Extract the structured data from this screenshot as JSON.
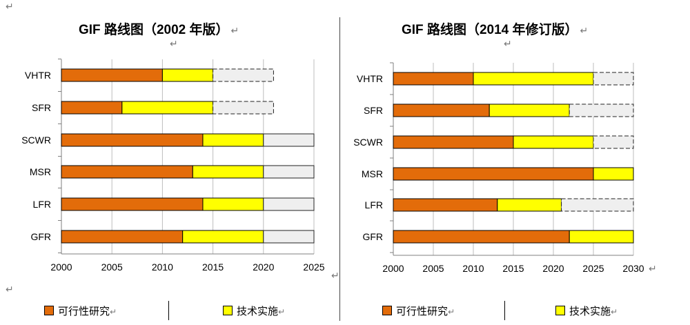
{
  "colors": {
    "feasibility": "#e36c0a",
    "implementation": "#ffff00",
    "remaining": "#efefef"
  },
  "legend": {
    "feasibility": "可行性研究",
    "implementation": "技术实施"
  },
  "marks": {
    "return_glyph": "↵"
  },
  "chart_data": [
    {
      "type": "bar",
      "orientation": "horizontal-stacked-gantt",
      "title": "GIF 路线图（2002 年版）",
      "categories": [
        "VHTR",
        "SFR",
        "SCWR",
        "MSR",
        "LFR",
        "GFR"
      ],
      "xlim": [
        2000,
        2025
      ],
      "xticks": [
        2000,
        2005,
        2010,
        2015,
        2020,
        2025
      ],
      "grid": true,
      "series": [
        {
          "name": "可行性研究",
          "ranges": [
            [
              2000,
              2010
            ],
            [
              2000,
              2006
            ],
            [
              2000,
              2014
            ],
            [
              2000,
              2013
            ],
            [
              2000,
              2014
            ],
            [
              2000,
              2012
            ]
          ]
        },
        {
          "name": "技术实施",
          "ranges": [
            [
              2010,
              2015
            ],
            [
              2006,
              2015
            ],
            [
              2014,
              2020
            ],
            [
              2013,
              2020
            ],
            [
              2014,
              2020
            ],
            [
              2012,
              2020
            ]
          ]
        },
        {
          "ranges": [
            [
              2015,
              2021
            ],
            [
              2015,
              2021
            ],
            [
              2020,
              2025
            ],
            [
              2020,
              2025
            ],
            [
              2020,
              2025
            ],
            [
              2020,
              2025
            ]
          ]
        }
      ],
      "dashed_top_rows": [
        "VHTR",
        "SFR"
      ]
    },
    {
      "type": "bar",
      "orientation": "horizontal-stacked-gantt",
      "title": "GIF 路线图（2014 年修订版）",
      "categories": [
        "VHTR",
        "SFR",
        "SCWR",
        "MSR",
        "LFR",
        "GFR"
      ],
      "xlim": [
        2000,
        2030
      ],
      "xticks": [
        2000,
        2005,
        2010,
        2015,
        2020,
        2025,
        2030
      ],
      "grid": true,
      "series": [
        {
          "name": "可行性研究",
          "ranges": [
            [
              2000,
              2010
            ],
            [
              2000,
              2012
            ],
            [
              2000,
              2015
            ],
            [
              2000,
              2025
            ],
            [
              2000,
              2013
            ],
            [
              2000,
              2022
            ]
          ]
        },
        {
          "name": "技术实施",
          "ranges": [
            [
              2010,
              2025
            ],
            [
              2012,
              2022
            ],
            [
              2015,
              2025
            ],
            [
              2025,
              2030
            ],
            [
              2013,
              2021
            ],
            [
              2022,
              2030
            ]
          ]
        },
        {
          "ranges": [
            [
              2025,
              2030
            ],
            [
              2022,
              2030
            ],
            [
              2025,
              2030
            ],
            null,
            [
              2021,
              2030
            ],
            null
          ]
        }
      ],
      "dashed_top_rows": [
        "VHTR",
        "SFR",
        "SCWR",
        "LFR"
      ]
    }
  ]
}
